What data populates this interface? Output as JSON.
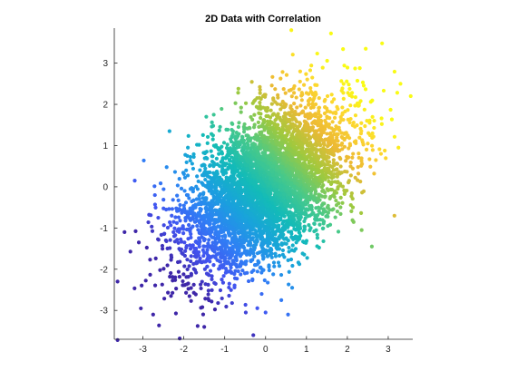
{
  "chart_data": {
    "type": "scatter",
    "title": "2D Data with Correlation",
    "xlabel": "",
    "ylabel": "",
    "xlim": [
      -3.7,
      3.6
    ],
    "ylim": [
      -3.7,
      3.85
    ],
    "xticks": [
      -3,
      -2,
      -1,
      0,
      1,
      2,
      3
    ],
    "yticks": [
      -3,
      -2,
      -1,
      0,
      1,
      2,
      3
    ],
    "xtick_labels": [
      "-3",
      "-2",
      "-1",
      "0",
      "1",
      "2",
      "3"
    ],
    "ytick_labels": [
      "-3",
      "-2",
      "-1",
      "0",
      "1",
      "2",
      "3"
    ],
    "grid": false,
    "box": "off",
    "colormap": "parula",
    "color_by": "x + y",
    "marker": "filled circle",
    "distribution": {
      "kind": "bivariate normal",
      "mean": [
        0,
        0
      ],
      "std": [
        1,
        1
      ],
      "correlation": 0.5,
      "n_points": 5000
    },
    "outliers": [
      {
        "x": 0.63,
        "y": 3.8
      },
      {
        "x": 1.6,
        "y": 3.72
      },
      {
        "x": 2.85,
        "y": 3.48
      },
      {
        "x": 2.45,
        "y": 3.35
      },
      {
        "x": 3.3,
        "y": 2.5
      },
      {
        "x": 3.55,
        "y": 2.2
      },
      {
        "x": 3.25,
        "y": 0.95
      },
      {
        "x": 2.5,
        "y": 1.05
      },
      {
        "x": -3.62,
        "y": -3.72
      },
      {
        "x": -2.1,
        "y": -3.68
      },
      {
        "x": -3.62,
        "y": -2.3
      },
      {
        "x": -3.45,
        "y": -1.1
      },
      {
        "x": -3.1,
        "y": -1.35
      },
      {
        "x": -3.05,
        "y": -2.95
      },
      {
        "x": -2.75,
        "y": -3.1
      },
      {
        "x": -1.5,
        "y": -3.4
      },
      {
        "x": -0.3,
        "y": -3.6
      },
      {
        "x": 0.55,
        "y": -3.1
      },
      {
        "x": 0.0,
        "y": -3.05
      },
      {
        "x": 0.65,
        "y": -2.45
      },
      {
        "x": 2.6,
        "y": -1.45
      },
      {
        "x": 2.35,
        "y": -1.05
      },
      {
        "x": -2.35,
        "y": 1.35
      },
      {
        "x": -1.45,
        "y": 1.7
      },
      {
        "x": -1.9,
        "y": 0.95
      },
      {
        "x": -3.2,
        "y": 0.15
      }
    ]
  },
  "colors": {
    "axis": "#262626",
    "text": "#262626",
    "colormap_stops": [
      "#3e26a8",
      "#4253f0",
      "#2f80f5",
      "#19a2dc",
      "#13bbb8",
      "#47c98a",
      "#9fc93e",
      "#ecb934",
      "#fcd530",
      "#f9fb15"
    ]
  }
}
